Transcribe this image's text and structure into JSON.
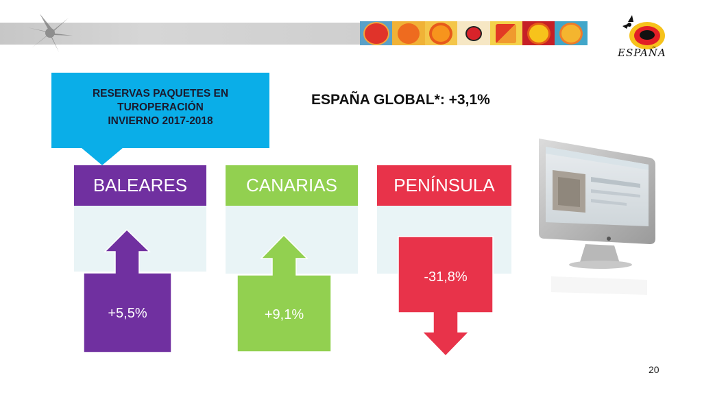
{
  "callout": {
    "lines": [
      "RESERVAS PAQUETES EN",
      "TUROPERACIÓN",
      "INVIERNO  2017-2018"
    ]
  },
  "headline": "ESPAÑA GLOBAL*: +3,1%",
  "logo": {
    "word": "ESPAÑA"
  },
  "regions": [
    {
      "name": "BALEARES",
      "change": "+5,5%",
      "direction": "up",
      "color": "#7030a0"
    },
    {
      "name": "CANARIAS",
      "change": "+9,1%",
      "direction": "up",
      "color": "#92d050"
    },
    {
      "name": "PENÍNSULA",
      "change": "-31,8%",
      "direction": "down",
      "color": "#e8334a"
    }
  ],
  "colors": {
    "callout": "#0aaee8",
    "card_body": "#e9f4f6",
    "banner_grey": "#cccccc"
  },
  "icons": [
    "star-decoration-icon",
    "sun-tiles-strip",
    "espana-sun-logo-icon",
    "computer-monitor-icon"
  ],
  "page_number": "20"
}
